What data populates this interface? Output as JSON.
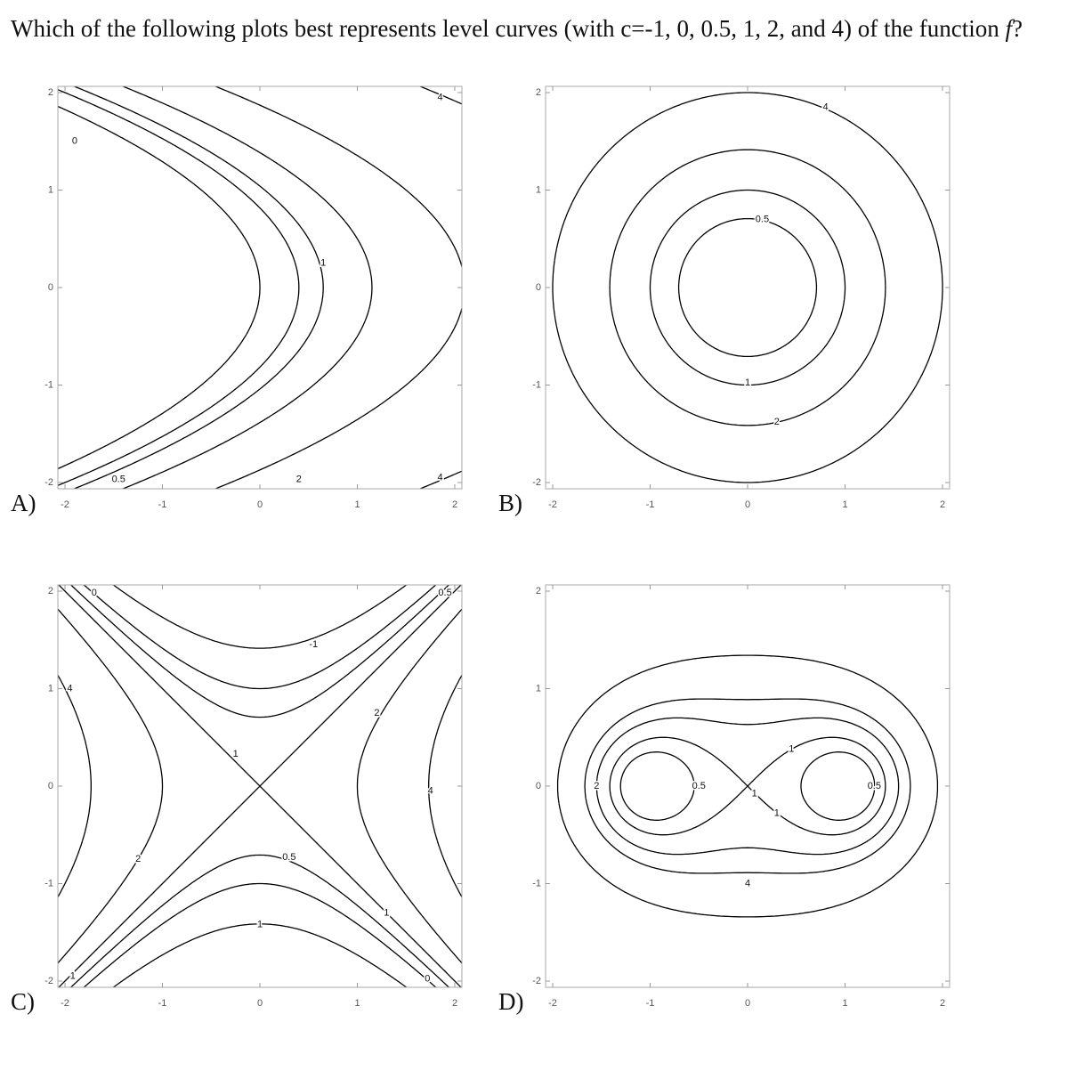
{
  "question": {
    "text_before": "Which of the following plots best represents level curves (with c=-1, 0, 0.5, 1, 2, and 4) of the function ",
    "variable": "f",
    "text_after": "?"
  },
  "options": [
    {
      "letter": "A)",
      "xticks": [
        -2,
        -1,
        0,
        1,
        2
      ],
      "yticks": [
        2,
        1,
        0,
        -1,
        -2
      ],
      "contour_labels": [
        0,
        0.5,
        1,
        2,
        4,
        4
      ]
    },
    {
      "letter": "B)",
      "xticks": [
        -2,
        -1,
        0,
        1,
        2
      ],
      "yticks": [
        2,
        1,
        0,
        -1,
        -2
      ],
      "contour_labels": [
        0.5,
        1,
        2,
        4
      ]
    },
    {
      "letter": "C)",
      "xticks": [
        -2,
        -1,
        0,
        1,
        2
      ],
      "yticks": [
        2,
        1,
        0,
        -1,
        -2
      ],
      "contour_labels": [
        0,
        0.5,
        -1,
        4,
        1,
        2,
        4,
        2,
        0.5,
        1,
        1,
        0,
        1
      ]
    },
    {
      "letter": "D)",
      "xticks": [
        -2,
        -1,
        0,
        1,
        2
      ],
      "yticks": [
        2,
        1,
        0,
        -1,
        -2
      ],
      "contour_labels": [
        2,
        0.5,
        0.5,
        1,
        1,
        1,
        4
      ]
    }
  ]
}
